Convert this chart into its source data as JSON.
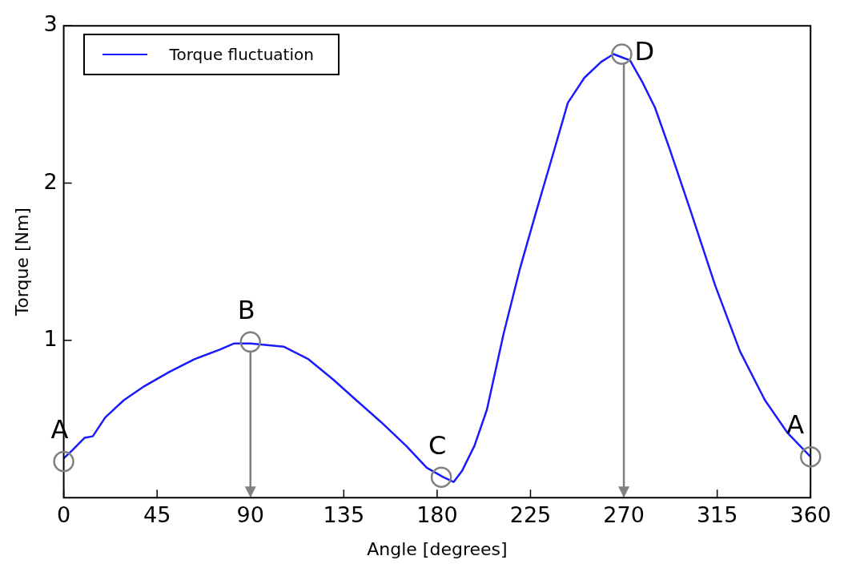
{
  "chart_data": {
    "type": "line",
    "xlabel": "Angle [degrees]",
    "ylabel": "Torque [Nm]",
    "xlim": [
      0,
      360
    ],
    "xticks": [
      0,
      45,
      90,
      135,
      180,
      225,
      270,
      315,
      360
    ],
    "ylim": [
      0,
      3
    ],
    "yticks": [
      1,
      2,
      3
    ],
    "grid": false,
    "legend": "top left",
    "marker": "none",
    "line_style": "solid",
    "x": [
      0,
      4,
      10,
      14,
      20,
      29,
      39,
      51,
      63,
      75,
      82,
      90,
      98,
      106,
      118,
      130,
      141,
      153,
      165,
      175,
      183,
      188,
      192,
      198,
      204,
      212,
      220,
      228,
      236,
      243,
      251,
      259,
      265,
      269,
      273,
      279,
      285,
      292,
      302,
      314,
      326,
      338,
      349,
      360
    ],
    "series": [
      {
        "name": "Torque fluctuation",
        "color": "#1a1aff",
        "values": [
          0.25,
          0.3,
          0.38,
          0.39,
          0.51,
          0.62,
          0.71,
          0.8,
          0.88,
          0.94,
          0.98,
          0.98,
          0.97,
          0.96,
          0.88,
          0.75,
          0.62,
          0.48,
          0.33,
          0.19,
          0.13,
          0.1,
          0.17,
          0.33,
          0.56,
          1.04,
          1.46,
          1.83,
          2.19,
          2.51,
          2.67,
          2.77,
          2.82,
          2.8,
          2.78,
          2.64,
          2.48,
          2.22,
          1.83,
          1.35,
          0.93,
          0.62,
          0.41,
          0.26
        ]
      }
    ],
    "annotations": [
      {
        "text": "A",
        "x": 0,
        "y": 0.23
      },
      {
        "text": "B",
        "x": 90,
        "y": 0.99
      },
      {
        "text": "C",
        "x": 182,
        "y": 0.13
      },
      {
        "text": "D",
        "x": 269,
        "y": 2.82
      },
      {
        "text": "A",
        "x": 360,
        "y": 0.26
      }
    ],
    "ref_lines": [
      {
        "axis": "x",
        "value": 90,
        "color": "#808080"
      },
      {
        "axis": "x",
        "value": 270,
        "color": "#808080"
      }
    ]
  }
}
